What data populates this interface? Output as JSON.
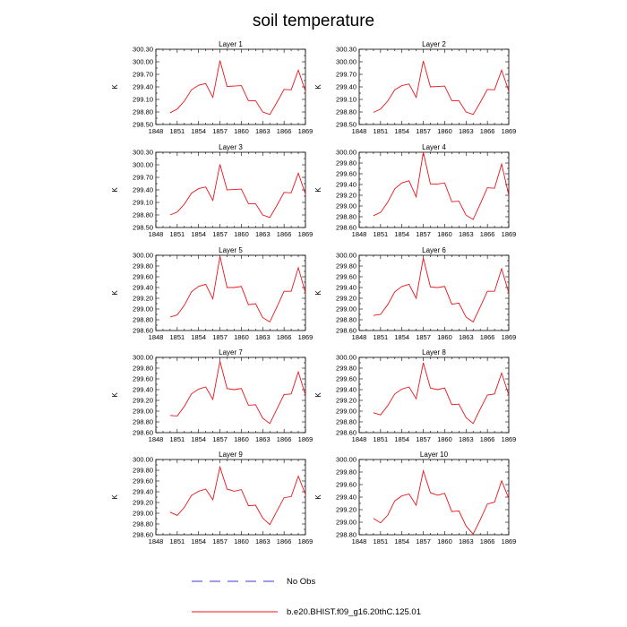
{
  "title": "soil temperature",
  "chart_data": {
    "type": "line",
    "title": "soil temperature",
    "ylabel": "K",
    "x": [
      1850,
      1851,
      1852,
      1853,
      1854,
      1855,
      1856,
      1857,
      1858,
      1859,
      1860,
      1861,
      1862,
      1863,
      1864,
      1865,
      1866,
      1867,
      1868,
      1869
    ],
    "xlim": [
      1848,
      1869
    ],
    "xticks": [
      1848,
      1851,
      1854,
      1857,
      1860,
      1863,
      1866,
      1869
    ],
    "legend": [
      {
        "name": "No Obs",
        "style": "dashed",
        "color": "#3a3ad0"
      },
      {
        "name": "b.e20.BHIST.f09_g16.20thC.125.01",
        "style": "solid",
        "color": "#e8141b"
      }
    ],
    "panels": [
      {
        "title": "Layer 1",
        "ylim": [
          298.5,
          300.3
        ],
        "yticks": [
          "298.50",
          "298.80",
          "299.10",
          "299.40",
          "299.70",
          "300.00",
          "300.30"
        ],
        "values": [
          298.78,
          298.87,
          299.06,
          299.33,
          299.44,
          299.48,
          299.15,
          300.03,
          299.41,
          299.42,
          299.43,
          299.07,
          299.07,
          298.8,
          298.74,
          299.03,
          299.34,
          299.33,
          299.8,
          299.3
        ]
      },
      {
        "title": "Layer 2",
        "ylim": [
          298.5,
          300.3
        ],
        "yticks": [
          "298.50",
          "298.80",
          "299.10",
          "299.40",
          "299.70",
          "300.00",
          "300.30"
        ],
        "values": [
          298.79,
          298.87,
          299.06,
          299.33,
          299.43,
          299.47,
          299.15,
          300.02,
          299.4,
          299.41,
          299.42,
          299.07,
          299.07,
          298.8,
          298.74,
          299.03,
          299.34,
          299.33,
          299.8,
          299.3
        ]
      },
      {
        "title": "Layer 3",
        "ylim": [
          298.5,
          300.3
        ],
        "yticks": [
          "298.50",
          "298.80",
          "299.10",
          "299.40",
          "299.70",
          "300.00",
          "300.30"
        ],
        "values": [
          298.8,
          298.87,
          299.06,
          299.32,
          299.43,
          299.47,
          299.15,
          300.01,
          299.4,
          299.41,
          299.42,
          299.07,
          299.07,
          298.8,
          298.74,
          299.03,
          299.34,
          299.33,
          299.8,
          299.3
        ]
      },
      {
        "title": "Layer 4",
        "ylim": [
          298.6,
          300.0
        ],
        "yticks": [
          "298.60",
          "298.80",
          "299.00",
          "299.20",
          "299.40",
          "299.60",
          "299.80",
          "300.00"
        ],
        "values": [
          298.82,
          298.88,
          299.07,
          299.32,
          299.43,
          299.47,
          299.17,
          300.0,
          299.41,
          299.41,
          299.43,
          299.08,
          299.09,
          298.83,
          298.75,
          299.04,
          299.34,
          299.33,
          299.78,
          299.2
        ]
      },
      {
        "title": "Layer 5",
        "ylim": [
          298.6,
          300.0
        ],
        "yticks": [
          "298.60",
          "298.80",
          "299.00",
          "299.20",
          "299.40",
          "299.60",
          "299.80",
          "300.00"
        ],
        "values": [
          298.85,
          298.89,
          299.07,
          299.32,
          299.42,
          299.46,
          299.19,
          299.98,
          299.4,
          299.4,
          299.42,
          299.08,
          299.1,
          298.84,
          298.76,
          299.04,
          299.33,
          299.33,
          299.77,
          299.3
        ]
      },
      {
        "title": "Layer 6",
        "ylim": [
          298.6,
          300.0
        ],
        "yticks": [
          "298.60",
          "298.80",
          "299.00",
          "299.20",
          "299.40",
          "299.60",
          "299.80",
          "300.00"
        ],
        "values": [
          298.88,
          298.9,
          299.08,
          299.32,
          299.42,
          299.46,
          299.2,
          299.95,
          299.41,
          299.4,
          299.42,
          299.09,
          299.11,
          298.85,
          298.76,
          299.04,
          299.33,
          299.33,
          299.75,
          299.3
        ]
      },
      {
        "title": "Layer 7",
        "ylim": [
          298.6,
          300.0
        ],
        "yticks": [
          "298.60",
          "298.80",
          "299.00",
          "299.20",
          "299.40",
          "299.60",
          "299.80",
          "300.00"
        ],
        "values": [
          298.92,
          298.91,
          299.09,
          299.32,
          299.41,
          299.45,
          299.22,
          299.93,
          299.42,
          299.4,
          299.42,
          299.11,
          299.12,
          298.87,
          298.77,
          299.04,
          299.31,
          299.32,
          299.73,
          299.3
        ]
      },
      {
        "title": "Layer 8",
        "ylim": [
          298.6,
          300.0
        ],
        "yticks": [
          "298.60",
          "298.80",
          "299.00",
          "299.20",
          "299.40",
          "299.60",
          "299.80",
          "300.00"
        ],
        "values": [
          298.97,
          298.93,
          299.1,
          299.32,
          299.41,
          299.45,
          299.23,
          299.9,
          299.43,
          299.4,
          299.43,
          299.12,
          299.13,
          298.88,
          298.77,
          299.04,
          299.3,
          299.32,
          299.71,
          299.3
        ]
      },
      {
        "title": "Layer 9",
        "ylim": [
          298.6,
          300.0
        ],
        "yticks": [
          "298.60",
          "298.80",
          "299.00",
          "299.20",
          "299.40",
          "299.60",
          "299.80",
          "300.00"
        ],
        "values": [
          299.02,
          298.96,
          299.11,
          299.33,
          299.41,
          299.45,
          299.25,
          299.86,
          299.45,
          299.41,
          299.44,
          299.14,
          299.15,
          298.91,
          298.79,
          299.04,
          299.29,
          299.31,
          299.69,
          299.35
        ]
      },
      {
        "title": "Layer 10",
        "ylim": [
          298.8,
          300.0
        ],
        "yticks": [
          "298.80",
          "299.00",
          "299.20",
          "299.40",
          "299.60",
          "299.80",
          "300.00"
        ],
        "values": [
          299.06,
          298.99,
          299.11,
          299.34,
          299.42,
          299.45,
          299.27,
          299.82,
          299.47,
          299.43,
          299.46,
          299.17,
          299.18,
          298.94,
          298.81,
          299.04,
          299.29,
          299.32,
          299.66,
          299.38
        ]
      }
    ]
  }
}
